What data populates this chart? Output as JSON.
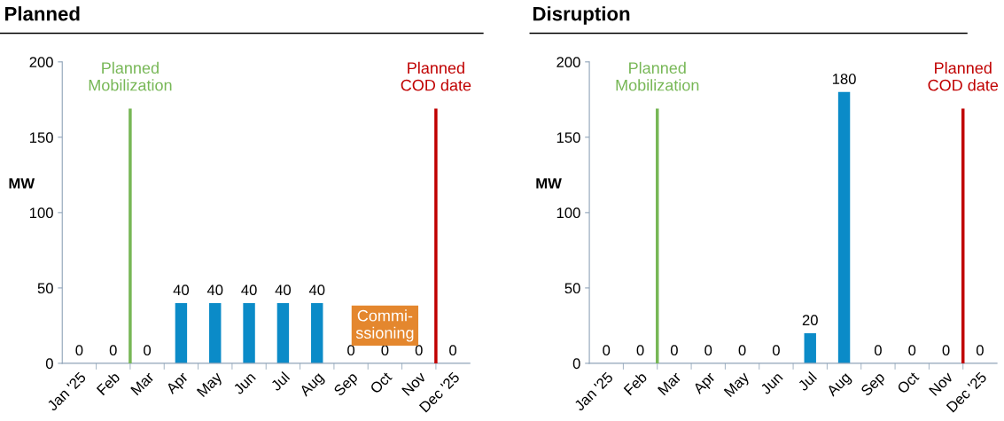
{
  "chart_data": [
    {
      "type": "bar",
      "title": "Planned",
      "ylabel": "MW",
      "categories": [
        "Jan '25",
        "Feb",
        "Mar",
        "Apr",
        "May",
        "Jun",
        "Jul",
        "Aug",
        "Sep",
        "Oct",
        "Nov",
        "Dec '25"
      ],
      "values": [
        0,
        0,
        0,
        40,
        40,
        40,
        40,
        40,
        0,
        0,
        0,
        0
      ],
      "color": "#0b8bc8",
      "ylim": [
        0,
        200
      ],
      "yticks": [
        0,
        50,
        100,
        150,
        200
      ],
      "grid": false,
      "legend": false,
      "data_labels": true,
      "ref_lines": [
        {
          "axis": "x",
          "value": "Mar",
          "label": "Planned\nMobilization",
          "color": "#77b756"
        },
        {
          "axis": "x",
          "value": "Dec '25",
          "label": "Planned\nCOD date",
          "color": "#c00000"
        }
      ],
      "annotations": [
        "Commi-\nssioning"
      ]
    },
    {
      "type": "bar",
      "title": "Disruption",
      "ylabel": "MW",
      "categories": [
        "Jan '25",
        "Feb",
        "Mar",
        "Apr",
        "May",
        "Jun",
        "Jul",
        "Aug",
        "Sep",
        "Oct",
        "Nov",
        "Dec '25"
      ],
      "values": [
        0,
        0,
        0,
        0,
        0,
        0,
        20,
        180,
        0,
        0,
        0,
        0
      ],
      "color": "#0b8bc8",
      "ylim": [
        0,
        200
      ],
      "yticks": [
        0,
        50,
        100,
        150,
        200
      ],
      "grid": false,
      "legend": false,
      "data_labels": true,
      "ref_lines": [
        {
          "axis": "x",
          "value": "Mar",
          "label": "Planned\nMobilization",
          "color": "#77b756"
        },
        {
          "axis": "x",
          "value": "Dec '25",
          "label": "Planned\nCOD date",
          "color": "#c00000"
        }
      ]
    }
  ]
}
